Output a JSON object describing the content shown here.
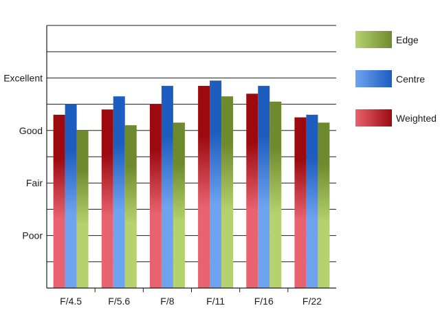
{
  "chart_data": {
    "type": "bar",
    "categories": [
      "F/4.5",
      "F/5.6",
      "F/8",
      "F/11",
      "F/16",
      "F/22"
    ],
    "y_ticks": [
      {
        "value": 2,
        "label": "Poor"
      },
      {
        "value": 4,
        "label": "Fair"
      },
      {
        "value": 6,
        "label": "Good"
      },
      {
        "value": 8,
        "label": "Excellent"
      }
    ],
    "ylim": [
      0,
      10
    ],
    "series": [
      {
        "name": "Weighted",
        "values": [
          6.6,
          6.8,
          7.0,
          7.7,
          7.4,
          6.5
        ],
        "colors": [
          "#e8636f",
          "#9c0a10"
        ]
      },
      {
        "name": "Centre",
        "values": [
          7.0,
          7.3,
          7.7,
          7.9,
          7.7,
          6.6
        ],
        "colors": [
          "#6ea3f0",
          "#1d5dbf"
        ]
      },
      {
        "name": "Edge",
        "values": [
          6.0,
          6.2,
          6.3,
          7.3,
          7.1,
          6.3
        ],
        "colors": [
          "#b5d26e",
          "#6f8a2e"
        ]
      }
    ],
    "legend_order": [
      "Edge",
      "Centre",
      "Weighted"
    ],
    "legend_position": "right",
    "grid": true,
    "title": "",
    "xlabel": "",
    "ylabel": ""
  }
}
